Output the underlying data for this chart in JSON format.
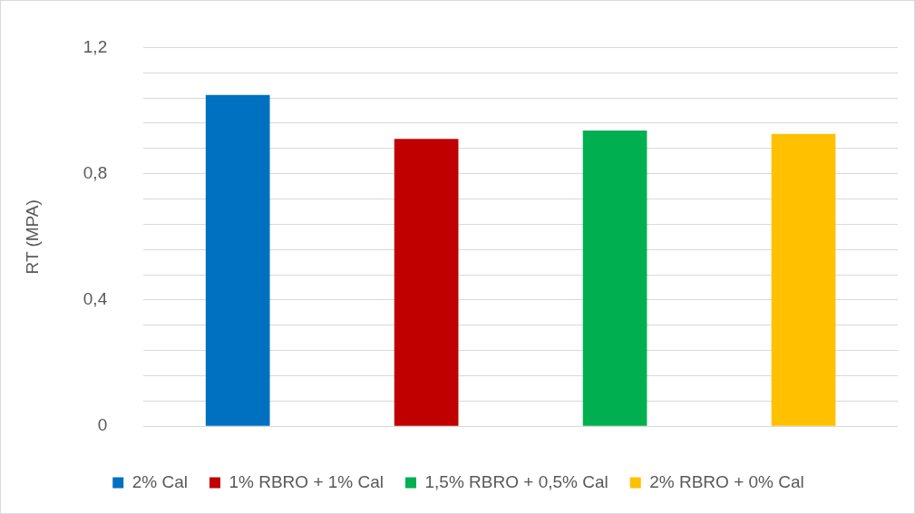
{
  "chart_data": {
    "type": "bar",
    "ylabel": "RT (MPA)",
    "categories": [
      null,
      null,
      null,
      null
    ],
    "series": [
      {
        "name": "2% Cal",
        "color": "#0070c0",
        "values": [
          1.05,
          null,
          null,
          null
        ]
      },
      {
        "name": "1% RBRO + 1% Cal",
        "color": "#c00000",
        "values": [
          null,
          0.91,
          null,
          null
        ]
      },
      {
        "name": "1,5% RBRO + 0,5% Cal",
        "color": "#00b050",
        "values": [
          null,
          null,
          0.937,
          null
        ]
      },
      {
        "name": "2% RBRO + 0% Cal",
        "color": "#ffc000",
        "values": [
          null,
          null,
          null,
          0.926
        ]
      }
    ],
    "ylim": [
      0,
      1.2
    ],
    "yticks": [
      {
        "value": 0,
        "label": "0"
      },
      {
        "value": 0.08,
        "label": null
      },
      {
        "value": 0.16,
        "label": null
      },
      {
        "value": 0.24,
        "label": null
      },
      {
        "value": 0.32,
        "label": null
      },
      {
        "value": 0.4,
        "label": "0,4"
      },
      {
        "value": 0.48,
        "label": null
      },
      {
        "value": 0.56,
        "label": null
      },
      {
        "value": 0.64,
        "label": null
      },
      {
        "value": 0.72,
        "label": null
      },
      {
        "value": 0.8,
        "label": "0,8"
      },
      {
        "value": 0.88,
        "label": null
      },
      {
        "value": 0.96,
        "label": null
      },
      {
        "value": 1.04,
        "label": null
      },
      {
        "value": 1.12,
        "label": null
      },
      {
        "value": 1.2,
        "label": "1,2"
      }
    ],
    "grid": "y",
    "legend": "bottom"
  }
}
